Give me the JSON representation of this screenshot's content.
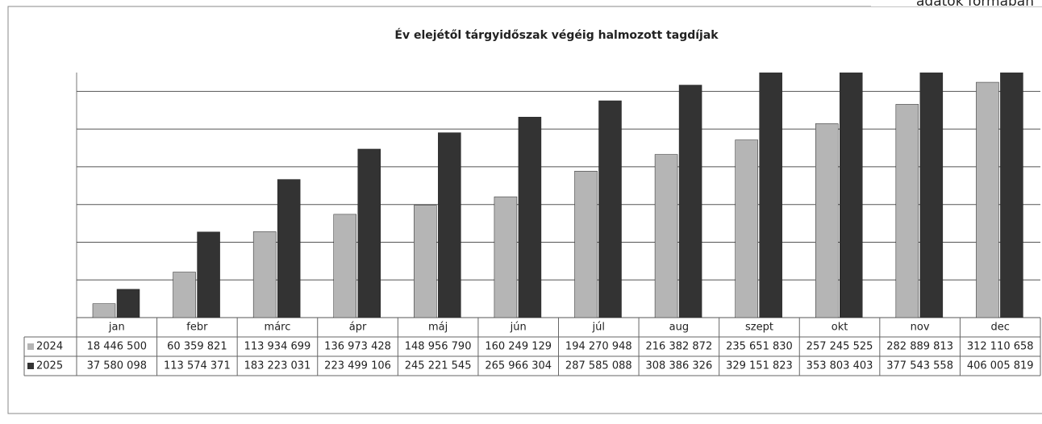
{
  "note": "adatok formában",
  "chart_data": {
    "type": "bar",
    "title": "Év elejétől tárgyidőszak végéig halmozott tagdíjak",
    "categories": [
      "jan",
      "febr",
      "márc",
      "ápr",
      "máj",
      "jún",
      "júl",
      "aug",
      "szept",
      "okt",
      "nov",
      "dec"
    ],
    "series": [
      {
        "name": "2024",
        "color": "#b5b5b5",
        "values": [
          18446500,
          60359821,
          113934699,
          136973428,
          148956790,
          160249129,
          194270948,
          216382872,
          235651830,
          257245525,
          282889813,
          312110658
        ],
        "value_labels": [
          "18 446 500",
          "60 359 821",
          "113 934 699",
          "136 973 428",
          "148 956 790",
          "160 249 129",
          "194 270 948",
          "216 382 872",
          "235 651 830",
          "257 245 525",
          "282 889 813",
          "312 110 658"
        ]
      },
      {
        "name": "2025",
        "color": "#333333",
        "values": [
          37580098,
          113574371,
          183223031,
          223499106,
          245221545,
          265966304,
          287585088,
          308386326,
          329151823,
          353803403,
          377543558,
          406005819
        ],
        "value_labels": [
          "37 580 098",
          "113 574 371",
          "183 223 031",
          "223 499 106",
          "245 221 545",
          "265 966 304",
          "287 585 088",
          "308 386 326",
          "329 151 823",
          "353 803 403",
          "377 543 558",
          "406 005 819"
        ]
      }
    ],
    "ylim": [
      0,
      325000000
    ],
    "yticks": [
      0,
      50000000,
      100000000,
      150000000,
      200000000,
      250000000,
      300000000
    ],
    "grid": true
  }
}
